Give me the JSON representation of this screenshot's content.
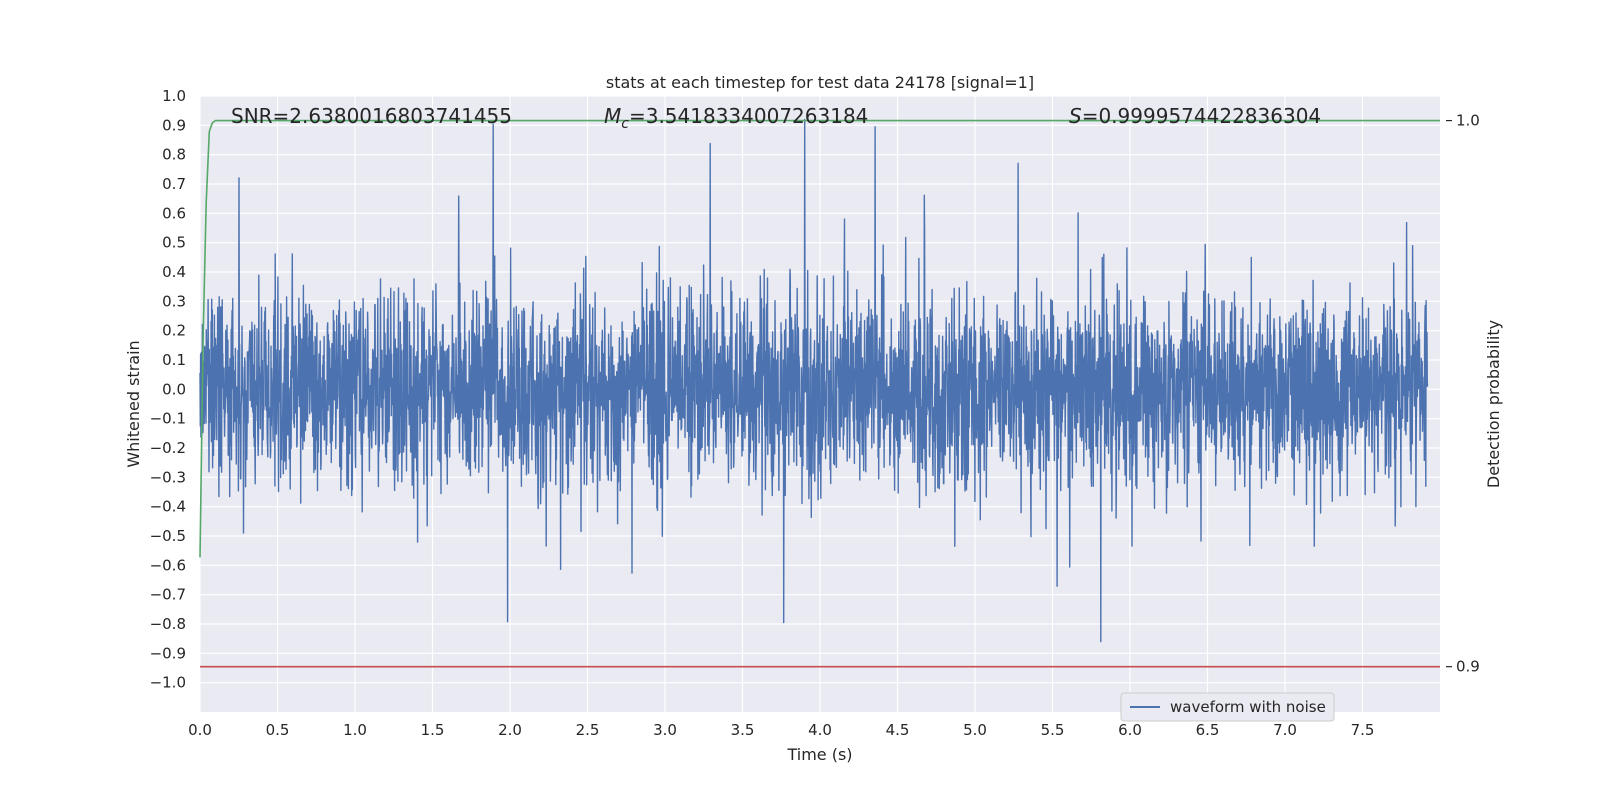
{
  "chart_data": {
    "type": "line",
    "title": "stats at each timestep for test data 24178 [signal=1]",
    "xlabel": "Time (s)",
    "ylabel": "Whitened strain",
    "ylabel_right": "Detection probability",
    "xlim": [
      0.0,
      8.0
    ],
    "ylim": [
      -1.1,
      1.0
    ],
    "ylim_right": [
      0.8917,
      1.0045
    ],
    "grid": true,
    "x_ticks": [
      "0.0",
      "0.5",
      "1.0",
      "1.5",
      "2.0",
      "2.5",
      "3.0",
      "3.5",
      "4.0",
      "4.5",
      "5.0",
      "5.5",
      "6.0",
      "6.5",
      "7.0",
      "7.5"
    ],
    "y_ticks": [
      "1.0",
      "0.9",
      "0.8",
      "0.7",
      "0.6",
      "0.5",
      "0.4",
      "0.3",
      "0.2",
      "0.1",
      "0.0",
      "−0.1",
      "−0.2",
      "−0.3",
      "−0.4",
      "−0.5",
      "−0.6",
      "−0.7",
      "−0.8",
      "−0.9",
      "−1.0"
    ],
    "y_right_ticks": [
      "1.0",
      "0.9"
    ],
    "annotations": {
      "snr": "SNR=2.6380016803741455",
      "mc_prefix": "M",
      "mc_sub": "c",
      "mc_value": "=3.5418334007263184",
      "s_prefix": "S",
      "s_value": "=0.9999574422836304"
    },
    "legend": {
      "label": "waveform with noise",
      "position": "lower right"
    },
    "series": [
      {
        "name": "waveform with noise",
        "color": "#4c72b0",
        "axis": "left",
        "x_range": [
          0.0,
          8.0
        ],
        "description_points": 4096,
        "amplitude_typical": 0.45,
        "amplitude_max": 0.92,
        "amplitude_min": -1.0
      },
      {
        "axis": "right",
        "color": "#55a868",
        "x": [
          0.0,
          0.02,
          0.04,
          0.06,
          0.08,
          0.1,
          0.2,
          1.0,
          2.0,
          3.0,
          4.0,
          5.0,
          6.0,
          7.0,
          8.0
        ],
        "values": [
          0.92,
          0.96,
          0.985,
          0.998,
          0.9996,
          1.0,
          1.0,
          1.0,
          1.0,
          1.0,
          1.0,
          1.0,
          1.0,
          1.0,
          1.0
        ]
      },
      {
        "axis": "right",
        "color": "#c44e52",
        "x": [
          0.0,
          8.0
        ],
        "values": [
          0.9,
          0.9
        ]
      }
    ]
  }
}
